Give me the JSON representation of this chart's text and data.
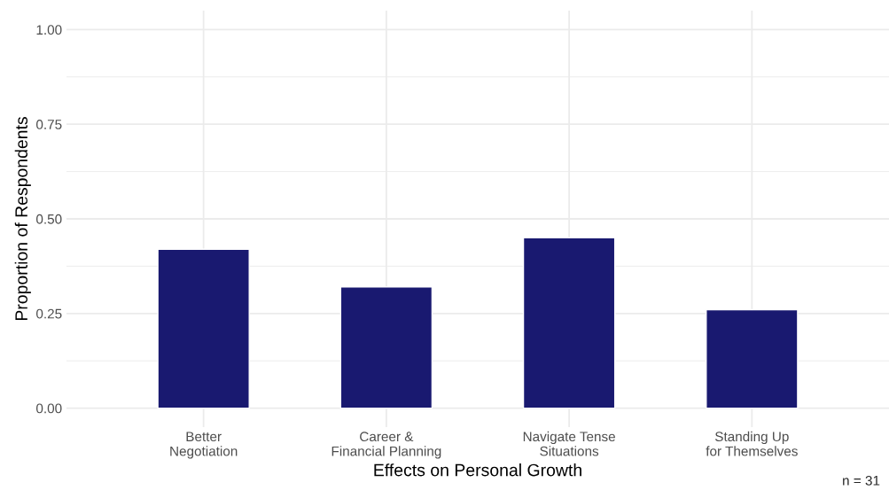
{
  "chart_data": {
    "type": "bar",
    "xlabel": "Effects on Personal Growth",
    "ylabel": "Proportion of Respondents",
    "categories": [
      "Better\nNegotiation",
      "Career &\nFinancial Planning",
      "Navigate Tense\nSituations",
      "Standing Up\nfor Themselves"
    ],
    "values": [
      0.42,
      0.32,
      0.45,
      0.26
    ],
    "color": "#191970",
    "ylim": [
      -0.05,
      1.05
    ],
    "yticks": [
      {
        "value": 0.0,
        "label": "0.00"
      },
      {
        "value": 0.125,
        "label": null
      },
      {
        "value": 0.25,
        "label": "0.25"
      },
      {
        "value": 0.375,
        "label": null
      },
      {
        "value": 0.5,
        "label": "0.50"
      },
      {
        "value": 0.625,
        "label": null
      },
      {
        "value": 0.75,
        "label": "0.75"
      },
      {
        "value": 0.875,
        "label": null
      },
      {
        "value": 1.0,
        "label": "1.00"
      }
    ],
    "grid": true,
    "annotations": [
      "n = 31"
    ]
  }
}
